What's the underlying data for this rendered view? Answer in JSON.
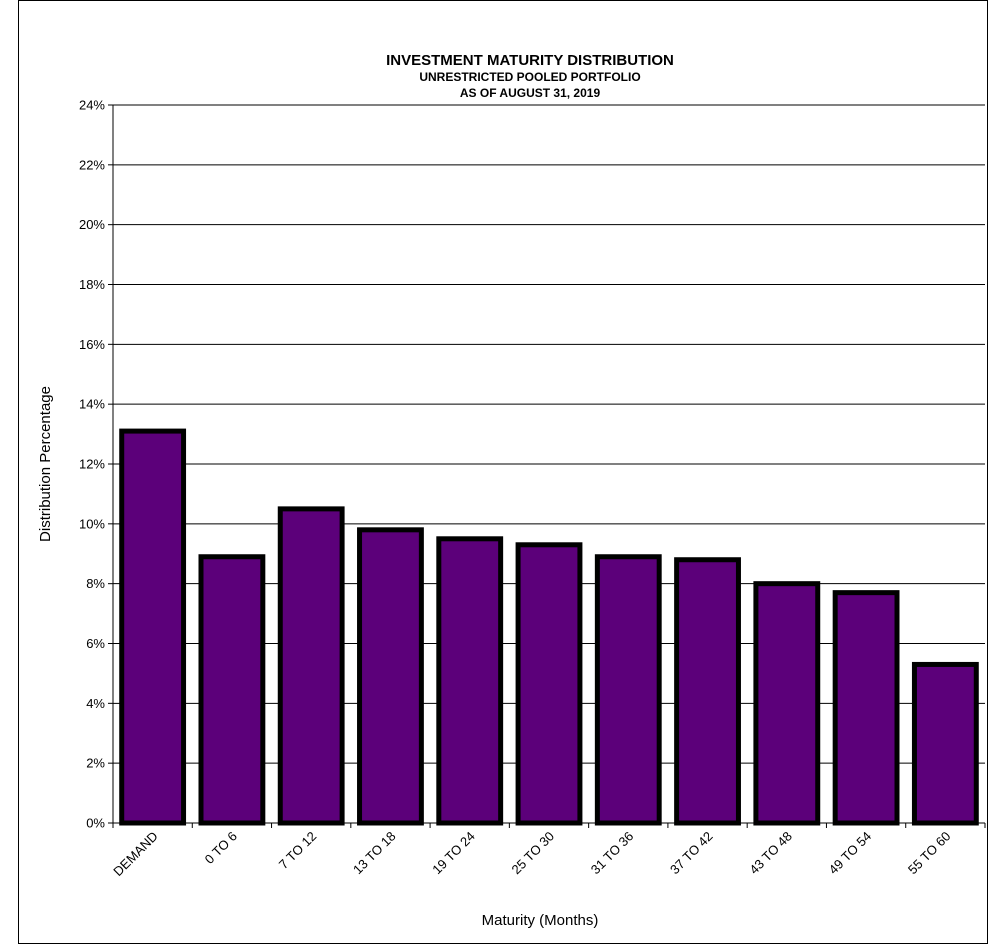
{
  "chart_data": {
    "type": "bar",
    "title": "INVESTMENT MATURITY DISTRIBUTION",
    "subtitle_1": "UNRESTRICTED POOLED PORTFOLIO",
    "subtitle_2": "AS OF AUGUST 31, 2019",
    "xlabel": "Maturity (Months)",
    "ylabel": "Distribution Percentage",
    "categories": [
      "DEMAND",
      "0 TO 6",
      "7 TO 12",
      "13 TO 18",
      "19 TO 24",
      "25 TO 30",
      "31 TO 36",
      "37 TO 42",
      "43 TO 48",
      "49 TO 54",
      "55 TO 60"
    ],
    "values": [
      13.1,
      8.9,
      10.5,
      9.8,
      9.5,
      9.3,
      8.9,
      8.8,
      8.0,
      7.7,
      5.3
    ],
    "ylim": [
      0,
      24
    ],
    "yticks": [
      0,
      2,
      4,
      6,
      8,
      10,
      12,
      14,
      16,
      18,
      20,
      22,
      24
    ],
    "ytick_labels": [
      "0%",
      "2%",
      "4%",
      "6%",
      "8%",
      "10%",
      "12%",
      "14%",
      "16%",
      "18%",
      "20%",
      "22%",
      "24%"
    ],
    "grid": true,
    "bar_color": "#5c007a",
    "bar_edge_color": "#000000"
  }
}
